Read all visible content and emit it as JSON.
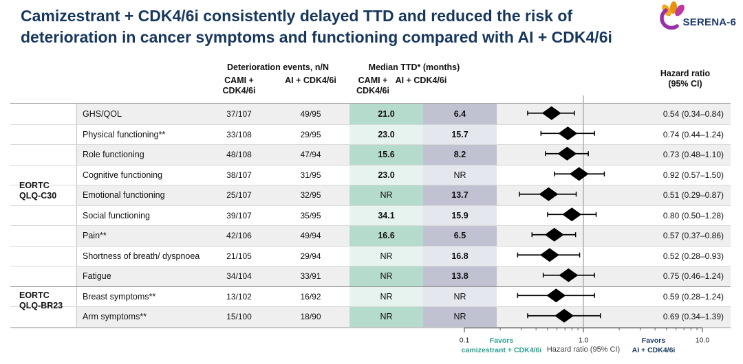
{
  "title": "Camizestrant + CDK4/6i consistently delayed TTD and reduced the risk of deterioration in cancer symptoms and functioning compared with AI + CDK4/6i",
  "logo": {
    "name": "SERENA-6"
  },
  "colors": {
    "title_navy": "#17375e",
    "favors_teal": "#2aa092",
    "ttd_cami_dark": "#b5dbcd",
    "ttd_cami_light": "#e7f3ee",
    "ttd_ai_dark": "#c0c1d1",
    "ttd_ai_light": "#e5e7ef",
    "row_stripe": "#efefef"
  },
  "table": {
    "group_headers": {
      "deterioration": "Deterioration events, n/N",
      "ttd": "Median TTD* (months)",
      "hazard_line1": "Hazard ratio",
      "hazard_line2": "(95% CI)"
    },
    "subheaders": {
      "cami_line1": "CAMI +",
      "cami_line2": "CDK4/6i",
      "ai": "AI + CDK4/6i"
    },
    "sections": [
      {
        "line1": "EORTC",
        "line2": "QLQ-C30"
      },
      {
        "line1": "EORTC",
        "line2": "QLQ-BR23"
      }
    ],
    "rows": [
      {
        "section": 0,
        "endpoint": "GHS/QOL",
        "det_cami": "37/107",
        "det_ai": "49/95",
        "ttd_cami": "21.0",
        "ttd_ai": "6.4",
        "hr_text": "0.54 (0.34–0.84)"
      },
      {
        "section": 0,
        "endpoint": "Physical functioning**",
        "det_cami": "33/108",
        "det_ai": "29/95",
        "ttd_cami": "23.0",
        "ttd_ai": "15.7",
        "hr_text": "0.74 (0.44–1.24)"
      },
      {
        "section": 0,
        "endpoint": "Role functioning",
        "det_cami": "48/108",
        "det_ai": "47/94",
        "ttd_cami": "15.6",
        "ttd_ai": "8.2",
        "hr_text": "0.73 (0.48–1.10)"
      },
      {
        "section": 0,
        "endpoint": "Cognitive functioning",
        "det_cami": "38/107",
        "det_ai": "31/95",
        "ttd_cami": "23.0",
        "ttd_ai": "NR",
        "hr_text": "0.92 (0.57–1.50)"
      },
      {
        "section": 0,
        "endpoint": "Emotional functioning",
        "det_cami": "25/107",
        "det_ai": "32/95",
        "ttd_cami": "NR",
        "ttd_ai": "13.7",
        "hr_text": "0.51 (0.29–0.87)"
      },
      {
        "section": 0,
        "endpoint": "Social functioning",
        "det_cami": "39/107",
        "det_ai": "35/95",
        "ttd_cami": "34.1",
        "ttd_ai": "15.9",
        "hr_text": "0.80 (0.50–1.28)"
      },
      {
        "section": 0,
        "endpoint": "Pain**",
        "det_cami": "42/106",
        "det_ai": "49/94",
        "ttd_cami": "16.6",
        "ttd_ai": "6.5",
        "hr_text": "0.57 (0.37–0.86)"
      },
      {
        "section": 0,
        "endpoint": "Shortness of breath/ dyspnoea",
        "det_cami": "21/105",
        "det_ai": "29/94",
        "ttd_cami": "NR",
        "ttd_ai": "16.8",
        "hr_text": "0.52 (0.28–0.93)"
      },
      {
        "section": 0,
        "endpoint": "Fatigue",
        "det_cami": "34/104",
        "det_ai": "33/91",
        "ttd_cami": "NR",
        "ttd_ai": "13.8",
        "hr_text": "0.75 (0.46–1.24)"
      },
      {
        "section": 1,
        "endpoint": "Breast symptoms**",
        "det_cami": "13/102",
        "det_ai": "16/92",
        "ttd_cami": "NR",
        "ttd_ai": "NR",
        "hr_text": "0.59 (0.28–1.24)"
      },
      {
        "section": 1,
        "endpoint": "Arm symptoms**",
        "det_cami": "15/100",
        "det_ai": "18/90",
        "ttd_cami": "NR",
        "ttd_ai": "NR",
        "hr_text": "0.69 (0.34–1.39)"
      }
    ]
  },
  "chart_data": {
    "type": "scatter",
    "variant": "forest-plot",
    "xscale": "log",
    "xlim": [
      0.1,
      10.0
    ],
    "xticks": [
      0.1,
      1.0,
      10.0
    ],
    "xtick_labels": [
      "0.1",
      "1.0",
      "10.0"
    ],
    "minor_ticks": [
      0.2,
      0.3,
      0.4,
      0.5,
      0.6,
      0.7,
      0.8,
      0.9,
      2,
      3,
      4,
      5,
      6,
      7,
      8,
      9
    ],
    "reference_line": 1.0,
    "xlabel": "Hazard ratio (95% CI)",
    "favors_left": {
      "line1": "Favors",
      "line2": "camizestrant + CDK4/6i"
    },
    "favors_right": {
      "line1": "Favors",
      "line2": "AI + CDK4/6i"
    },
    "points": [
      {
        "label": "GHS/QOL",
        "hr": 0.54,
        "ci_low": 0.34,
        "ci_high": 0.84
      },
      {
        "label": "Physical functioning**",
        "hr": 0.74,
        "ci_low": 0.44,
        "ci_high": 1.24
      },
      {
        "label": "Role functioning",
        "hr": 0.73,
        "ci_low": 0.48,
        "ci_high": 1.1
      },
      {
        "label": "Cognitive functioning",
        "hr": 0.92,
        "ci_low": 0.57,
        "ci_high": 1.5
      },
      {
        "label": "Emotional functioning",
        "hr": 0.51,
        "ci_low": 0.29,
        "ci_high": 0.87
      },
      {
        "label": "Social functioning",
        "hr": 0.8,
        "ci_low": 0.5,
        "ci_high": 1.28
      },
      {
        "label": "Pain**",
        "hr": 0.57,
        "ci_low": 0.37,
        "ci_high": 0.86
      },
      {
        "label": "Shortness of breath/ dyspnoea",
        "hr": 0.52,
        "ci_low": 0.28,
        "ci_high": 0.93
      },
      {
        "label": "Fatigue",
        "hr": 0.75,
        "ci_low": 0.46,
        "ci_high": 1.24
      },
      {
        "label": "Breast symptoms**",
        "hr": 0.59,
        "ci_low": 0.28,
        "ci_high": 1.24
      },
      {
        "label": "Arm symptoms**",
        "hr": 0.69,
        "ci_low": 0.34,
        "ci_high": 1.39
      }
    ]
  }
}
